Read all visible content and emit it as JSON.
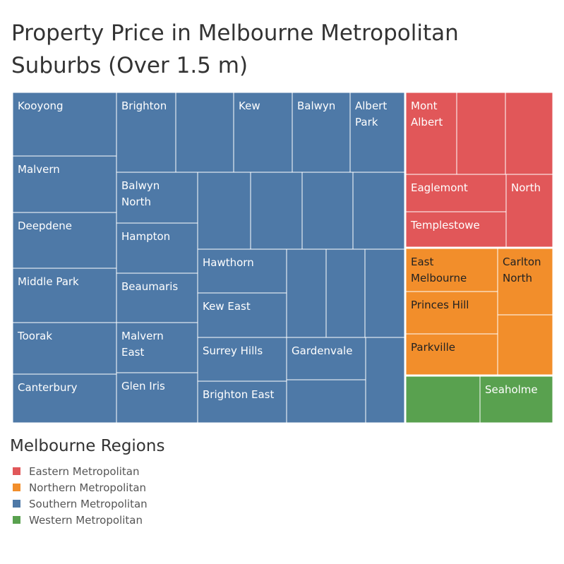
{
  "title": "Property Price in Melbourne Metropolitan Suburbs (Over 1.5 m)",
  "legend": {
    "title": "Melbourne Regions",
    "items": [
      {
        "label": "Eastern Metropolitan",
        "color": "#e15759"
      },
      {
        "label": "Northern Metropolitan",
        "color": "#f28e2b"
      },
      {
        "label": "Southern Metropolitan",
        "color": "#4e79a7"
      },
      {
        "label": "Western Metropolitan",
        "color": "#59a14f"
      }
    ]
  },
  "chart_data": {
    "type": "treemap",
    "title": "Property Price in Melbourne Metropolitan Suburbs (Over 1.5 m)",
    "legend_position": "bottom-left",
    "regions": [
      {
        "name": "Southern Metropolitan",
        "color": "#4e79a7",
        "suburbs": [
          "Kooyong",
          "Malvern",
          "Deepdene",
          "Middle Park",
          "Toorak",
          "Canterbury",
          "Brighton",
          "Kew",
          "Balwyn",
          "Albert Park",
          "Balwyn North",
          "Hampton",
          "Beaumaris",
          "Malvern East",
          "Glen Iris",
          "Hawthorn",
          "Kew East",
          "Surrey Hills",
          "Brighton East",
          "Gardenvale"
        ]
      },
      {
        "name": "Eastern Metropolitan",
        "color": "#e15759",
        "suburbs": [
          "Mont Albert",
          "Eaglemont",
          "Templestowe",
          "North"
        ]
      },
      {
        "name": "Northern Metropolitan",
        "color": "#f28e2b",
        "suburbs": [
          "East Melbourne",
          "Carlton North",
          "Princes Hill",
          "Parkville"
        ]
      },
      {
        "name": "Western Metropolitan",
        "color": "#59a14f",
        "suburbs": [
          "Seaholme"
        ]
      }
    ]
  }
}
